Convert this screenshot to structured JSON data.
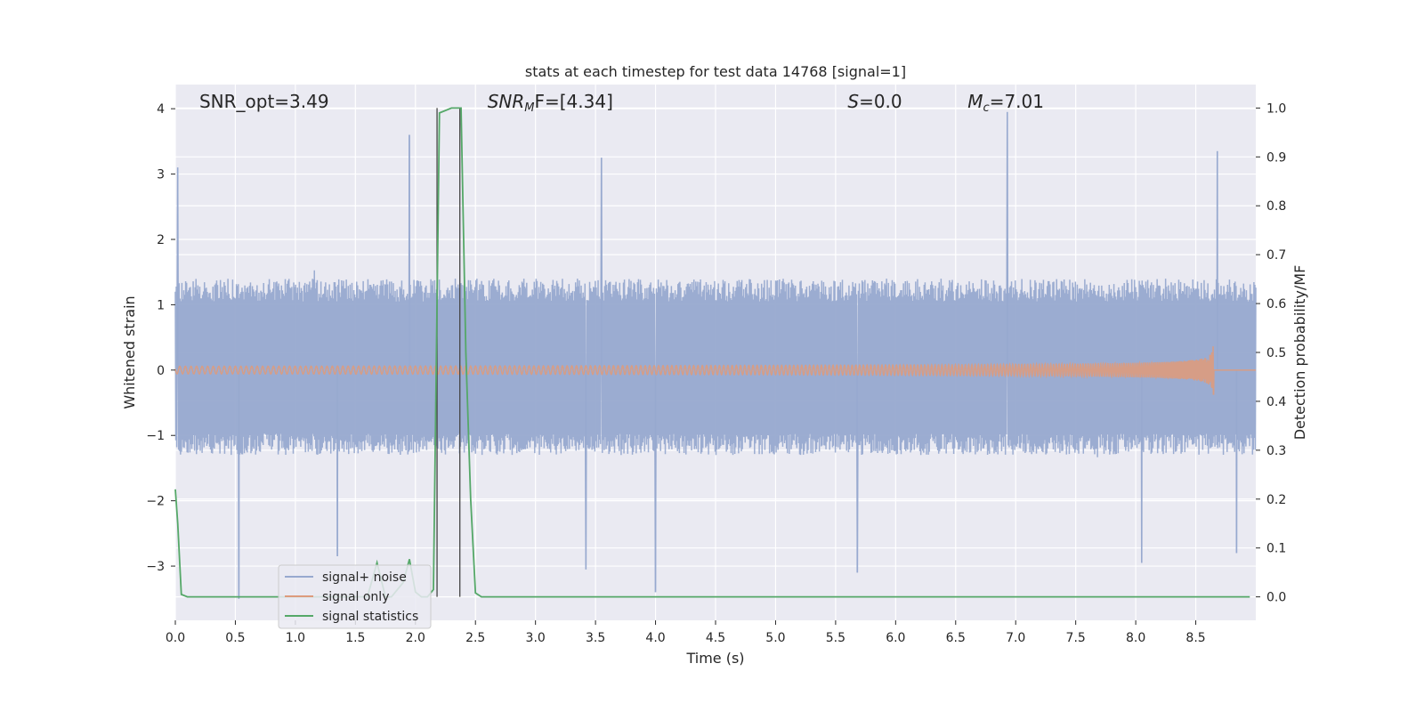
{
  "chart_data": {
    "type": "line",
    "title": "stats at each timestep for test data 14768 [signal=1]",
    "xlabel": "Time (s)",
    "ylabel": "Whitened strain",
    "ylabel_right": "Detection probability/MF",
    "xlim": [
      0.0,
      9.0
    ],
    "ylim": [
      -3.83,
      4.37
    ],
    "ylim_right": [
      -0.048,
      1.048
    ],
    "x_ticks": [
      0.0,
      0.5,
      1.0,
      1.5,
      2.0,
      2.5,
      3.0,
      3.5,
      4.0,
      4.5,
      5.0,
      5.5,
      6.0,
      6.5,
      7.0,
      7.5,
      8.0,
      8.5
    ],
    "x_tick_labels": [
      "0.0",
      "0.5",
      "1.0",
      "1.5",
      "2.0",
      "2.5",
      "3.0",
      "3.5",
      "4.0",
      "4.5",
      "5.0",
      "5.5",
      "6.0",
      "6.5",
      "7.0",
      "7.5",
      "8.0",
      "8.5"
    ],
    "y_ticks": [
      -3,
      -2,
      -1,
      0,
      1,
      2,
      3,
      4
    ],
    "y_tick_labels": [
      "−3",
      "−2",
      "−1",
      "0",
      "1",
      "2",
      "3",
      "4"
    ],
    "y_right_ticks": [
      0.0,
      0.1,
      0.2,
      0.3,
      0.4,
      0.5,
      0.6,
      0.7,
      0.8,
      0.9,
      1.0
    ],
    "y_right_tick_labels": [
      "0.0",
      "0.1",
      "0.2",
      "0.3",
      "0.4",
      "0.5",
      "0.6",
      "0.7",
      "0.8",
      "0.9",
      "1.0"
    ],
    "grid": true,
    "legend_position": "bottom-left",
    "annotations": [
      {
        "prefix": "SNR_opt",
        "sub": "",
        "suffix": "=3.49",
        "x": 0.2,
        "italic": false
      },
      {
        "prefix": "SNR",
        "sub": "M",
        "suffix": "F=[4.34]",
        "x": 2.6,
        "italic": true
      },
      {
        "prefix": "S",
        "sub": "",
        "suffix": "=0.0",
        "x": 5.6,
        "italic": true
      },
      {
        "prefix": "M",
        "sub": "c",
        "suffix": "=7.01",
        "x": 6.6,
        "italic": true
      }
    ],
    "vertical_lines": [
      2.18,
      2.37
    ],
    "series": [
      {
        "name": "signal+ noise",
        "color": "#97a9cf",
        "description": "whitened noisy strain, roughly gaussian between about -1.3 and 1.4 with spikes to about -3.5 and 3.6",
        "core_lower": -1.3,
        "core_upper": 1.4,
        "peaks": [
          {
            "x": 0.02,
            "y": 3.1
          },
          {
            "x": 0.53,
            "y": -3.5
          },
          {
            "x": 1.95,
            "y": 3.6
          },
          {
            "x": 3.55,
            "y": 3.25
          },
          {
            "x": 3.42,
            "y": -3.05
          },
          {
            "x": 4.0,
            "y": -3.4
          },
          {
            "x": 6.93,
            "y": 3.95
          },
          {
            "x": 8.68,
            "y": 3.35
          },
          {
            "x": 5.68,
            "y": -3.1
          },
          {
            "x": 8.05,
            "y": -2.95
          },
          {
            "x": 8.84,
            "y": -2.8
          },
          {
            "x": 1.35,
            "y": -2.85
          }
        ]
      },
      {
        "name": "signal only",
        "color": "#dd9b7d",
        "description": "chirp waveform, flat near zero until about 4.8 s, amplitude growing to about 0.4 at merger near 8.65 s",
        "merger_time": 8.65,
        "merger_amplitude": 0.4
      },
      {
        "name": "signal statistics",
        "color": "#55a868",
        "axis": "right",
        "x": [
          0.0,
          0.02,
          0.05,
          0.1,
          0.2,
          0.3,
          1.6,
          1.68,
          1.75,
          1.8,
          1.9,
          1.95,
          2.0,
          2.05,
          2.1,
          2.15,
          2.2,
          2.3,
          2.35,
          2.38,
          2.42,
          2.46,
          2.5,
          2.55,
          8.95
        ],
        "values": [
          0.22,
          0.15,
          0.005,
          0.0,
          0.0,
          0.0,
          0.0,
          0.07,
          0.0,
          0.0,
          0.03,
          0.077,
          0.01,
          0.0,
          0.0,
          0.015,
          0.99,
          1.0,
          1.0,
          1.0,
          0.5,
          0.2,
          0.008,
          0.0,
          0.0
        ]
      }
    ]
  }
}
